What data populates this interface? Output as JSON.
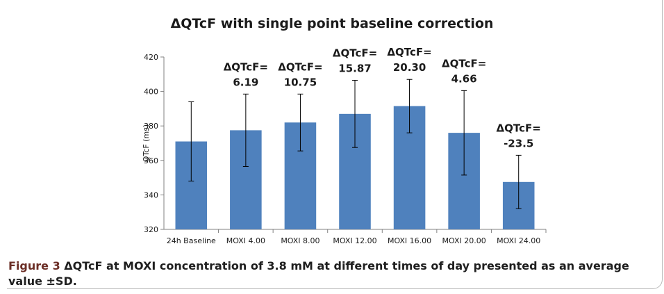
{
  "chart_data": {
    "type": "bar",
    "title": "ΔQTcF with single point baseline correction",
    "ylabel": "QTcF (ms)",
    "xlabel": "",
    "ylim": [
      320,
      420
    ],
    "yticks": [
      "320",
      "340",
      "360",
      "380",
      "400",
      "420"
    ],
    "grid": false,
    "categories": [
      "24h Baseline",
      "MOXI 4.00",
      "MOXI 8.00",
      "MOXI 12.00",
      "MOXI 16.00",
      "MOXI 20.00",
      "MOXI 24.00"
    ],
    "values": [
      371,
      377.5,
      382,
      387,
      391.5,
      376,
      347.5
    ],
    "error": [
      23,
      21,
      16.5,
      19.5,
      15.5,
      24.5,
      15.5
    ],
    "annotations": [
      "",
      "ΔQTcF=\n6.19",
      "ΔQTcF=\n10.75",
      "ΔQTcF=\n15.87",
      "ΔQTcF=\n20.30",
      "ΔQTcF=\n4.66",
      "ΔQTcF=\n-23.5"
    ],
    "bar_color": "#4f81bd"
  },
  "caption": {
    "label": "Figure 3",
    "text": " ΔQTcF at MOXI concentration of 3.8 mM at different times of day presented as an average value ±SD."
  }
}
